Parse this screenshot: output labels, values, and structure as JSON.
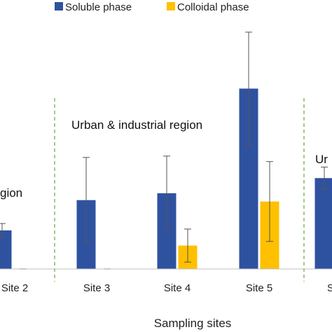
{
  "chart_data": {
    "type": "bar",
    "categories": [
      "Site 2",
      "Site 3",
      "Site 4",
      "Site 5",
      "S"
    ],
    "series": [
      {
        "name": "Soluble phase",
        "color": "#2f52a0",
        "values": [
          28,
          50,
          55,
          131,
          66
        ],
        "error": [
          5,
          31,
          27,
          41,
          8
        ]
      },
      {
        "name": "Colloidal phase",
        "color": "#ffc000",
        "values": [
          0,
          0,
          17,
          49,
          null
        ],
        "error": [
          0,
          0,
          12,
          29,
          null
        ]
      }
    ],
    "xlabel": "Sampling sites",
    "ylabel": "",
    "ylim": [
      0,
      175
    ],
    "grid": false,
    "legend_position": "top",
    "annotations": [
      {
        "text": "gion"
      },
      {
        "text": "Urban & industrial region"
      },
      {
        "text": "Ur"
      }
    ],
    "region_dividers": "green dashed vertical lines between site groups"
  }
}
